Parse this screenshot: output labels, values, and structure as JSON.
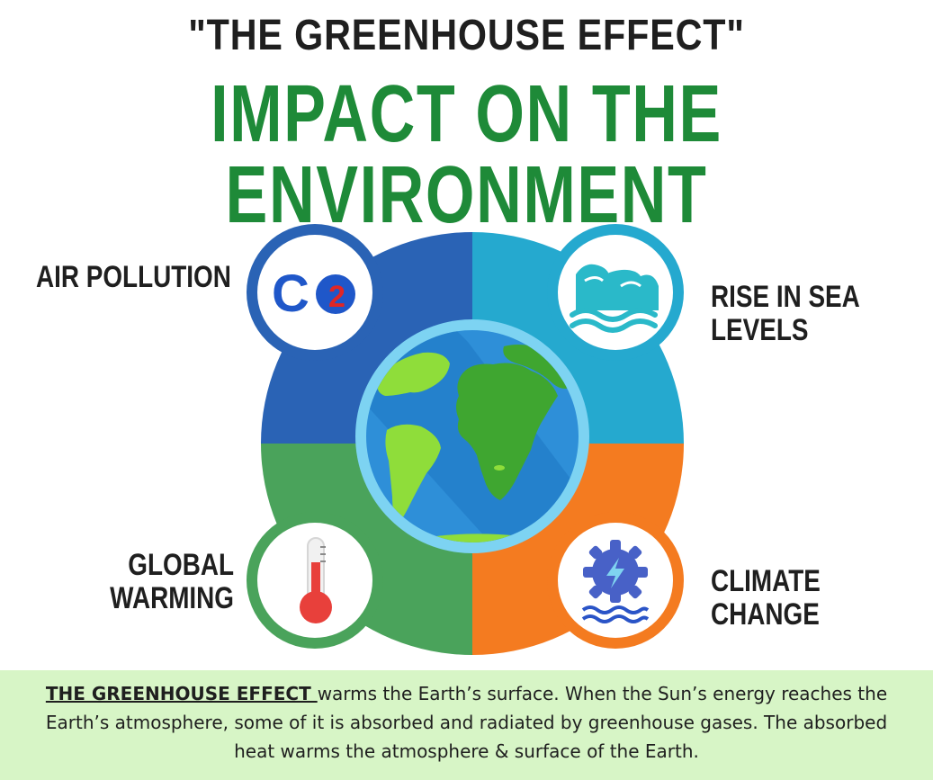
{
  "header": {
    "subtitle": "\"THE GREENHOUSE EFFECT\"",
    "title": "IMPACT ON THE ENVIRONMENT"
  },
  "quadrants": {
    "air_pollution": {
      "label": "AIR POLLUTION",
      "icon": "co2-icon",
      "color": "#2a63b5"
    },
    "sea_levels": {
      "label_line1": "RISE IN SEA",
      "label_line2": "LEVELS",
      "icon": "waves-icon",
      "color": "#25a9cf"
    },
    "global_warming": {
      "label_line1": "GLOBAL",
      "label_line2": "WARMING",
      "icon": "thermometer-icon",
      "color": "#4aa35b"
    },
    "climate_change": {
      "label": "CLIMATE CHANGE",
      "icon": "water-turbine-icon",
      "color": "#f47b20"
    }
  },
  "co2_icon": {
    "letter_c": "C",
    "letter_o": "O",
    "digit": "2"
  },
  "center_icon": "earth-globe-icon",
  "description": {
    "lead": "THE GREENHOUSE EFFECT ",
    "body": "warms the Earth’s surface. When the Sun’s energy reaches the Earth’s atmosphere, some of it is absorbed and radiated by greenhouse gases. The absorbed heat warms the atmosphere & surface of the Earth."
  },
  "colors": {
    "title_green": "#1e8a38",
    "desc_bg": "#d7f5c6"
  }
}
